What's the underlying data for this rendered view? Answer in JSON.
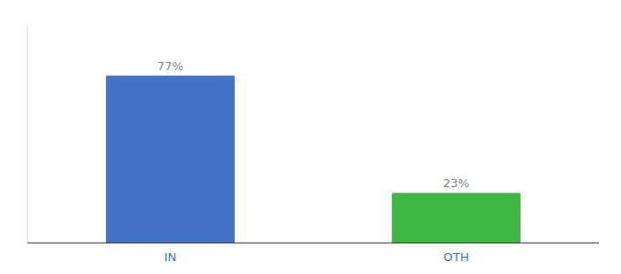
{
  "chart_data": {
    "type": "bar",
    "categories": [
      "IN",
      "OTH"
    ],
    "values": [
      77,
      23
    ],
    "value_labels": [
      "77%",
      "23%"
    ],
    "colors": [
      "#4472c4",
      "#3cb843"
    ],
    "ylim": [
      0,
      100
    ],
    "grid": false,
    "data_labels": true,
    "tick_labels": "x"
  }
}
